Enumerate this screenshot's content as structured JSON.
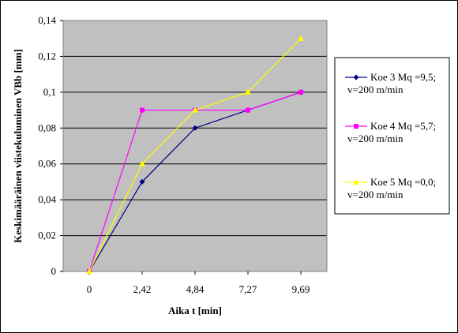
{
  "chart_data": {
    "type": "line",
    "xlabel": "Aika t [min]",
    "ylabel": "Keskimääräinen viistekuluminen VBb [mm]",
    "categories": [
      "0",
      "2,42",
      "4,84",
      "7,27",
      "9,69"
    ],
    "ylim": [
      0,
      0.14
    ],
    "yticks": [
      "0",
      "0,02",
      "0,04",
      "0,06",
      "0,08",
      "0,1",
      "0,12",
      "0,14"
    ],
    "grid": "horizontal",
    "plot_background": "#c0c0c0",
    "legend_position": "right",
    "series": [
      {
        "line1": "Koe 3 Mq =9,5;",
        "line2": "v=200 m/min",
        "color": "#000080",
        "marker": "diamond",
        "values": [
          0,
          0.05,
          0.08,
          0.09,
          0.1
        ]
      },
      {
        "line1": "Koe 4 Mq =5,7;",
        "line2": "v=200 m/min",
        "color": "#ff00ff",
        "marker": "square",
        "values": [
          0,
          0.09,
          0.09,
          0.09,
          0.1
        ]
      },
      {
        "line1": "Koe 5 Mq =0,0;",
        "line2": "v=200 m/min",
        "color": "#ffff00",
        "marker": "triangle",
        "values": [
          0,
          0.06,
          0.09,
          0.1,
          0.13
        ]
      }
    ]
  }
}
